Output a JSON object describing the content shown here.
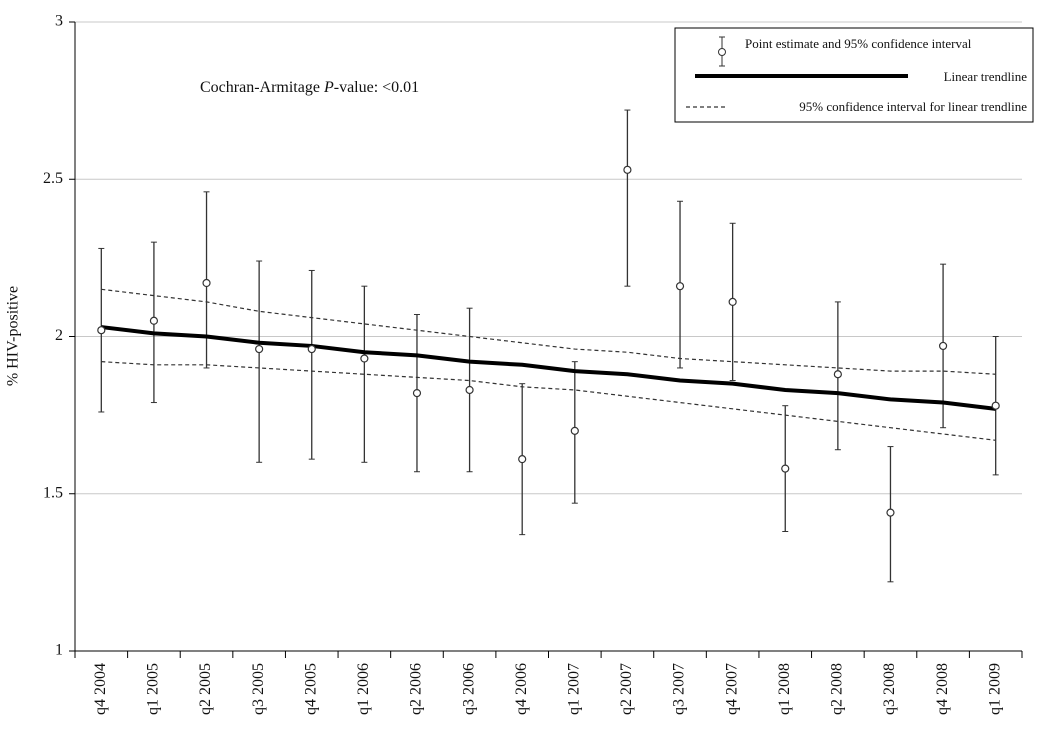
{
  "chart_data": {
    "type": "errorbar",
    "annotation": {
      "prefix": "Cochran-Armitage ",
      "italic": "P",
      "suffix": "-value: <0.01"
    },
    "ylabel": "% HIV-positive",
    "categories": [
      "q4 2004",
      "q1 2005",
      "q2 2005",
      "q3 2005",
      "q4 2005",
      "q1 2006",
      "q2 2006",
      "q3 2006",
      "q4 2006",
      "q1 2007",
      "q2 2007",
      "q3 2007",
      "q4 2007",
      "q1 2008",
      "q2 2008",
      "q3 2008",
      "q4 2008",
      "q1 2009"
    ],
    "series": [
      {
        "name": "Point estimate and 95% confidence interval",
        "color": "#333333",
        "values": [
          2.02,
          2.05,
          2.17,
          1.96,
          1.96,
          1.93,
          1.82,
          1.83,
          1.61,
          1.7,
          2.53,
          2.16,
          2.11,
          1.58,
          1.88,
          1.44,
          1.97,
          1.78
        ],
        "lower": [
          1.76,
          1.79,
          1.9,
          1.6,
          1.61,
          1.6,
          1.57,
          1.57,
          1.37,
          1.47,
          2.16,
          1.9,
          1.86,
          1.38,
          1.64,
          1.22,
          1.71,
          1.56
        ],
        "upper": [
          2.28,
          2.3,
          2.46,
          2.24,
          2.21,
          2.16,
          2.07,
          2.09,
          1.85,
          1.92,
          2.72,
          2.43,
          2.36,
          1.78,
          2.11,
          1.65,
          2.23,
          2.0
        ]
      },
      {
        "name": "Linear trendline",
        "color": "#000000",
        "style": "solid",
        "values": [
          2.03,
          2.01,
          2.0,
          1.98,
          1.97,
          1.95,
          1.94,
          1.92,
          1.91,
          1.89,
          1.88,
          1.86,
          1.85,
          1.83,
          1.82,
          1.8,
          1.79,
          1.77
        ]
      },
      {
        "name": "95% confidence interval for linear trendline",
        "color": "#333333",
        "style": "dashed",
        "values": [
          2.15,
          2.13,
          2.11,
          2.08,
          2.06,
          2.04,
          2.02,
          2.0,
          1.98,
          1.96,
          1.95,
          1.93,
          1.92,
          1.91,
          1.9,
          1.89,
          1.89,
          1.88
        ],
        "values2": [
          1.92,
          1.91,
          1.91,
          1.9,
          1.89,
          1.88,
          1.87,
          1.86,
          1.84,
          1.83,
          1.81,
          1.79,
          1.77,
          1.75,
          1.73,
          1.71,
          1.69,
          1.67
        ]
      }
    ],
    "ylim": [
      1,
      3
    ],
    "yticks": [
      1,
      1.5,
      2,
      2.5,
      3
    ],
    "grid": true,
    "legend": "upper right"
  }
}
